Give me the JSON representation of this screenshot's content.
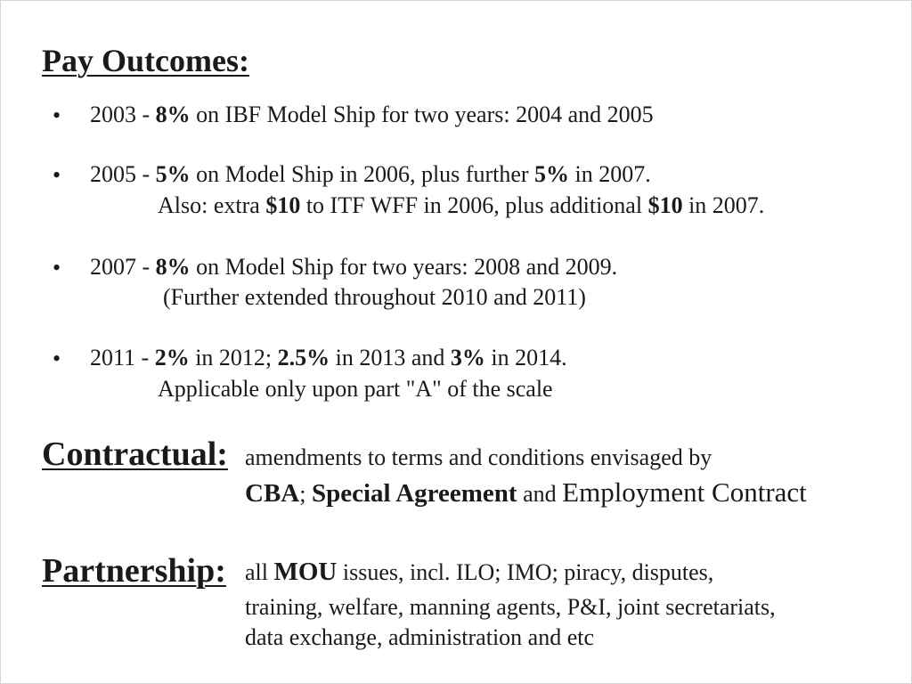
{
  "pay": {
    "title": "Pay Outcomes:",
    "items": [
      {
        "year": "2003 - ",
        "pct1": "8%",
        "rest1": " on IBF Model Ship for two years: 2004 and 2005"
      },
      {
        "year": "2005 - ",
        "pct1": "5%",
        "mid1": " on Model Ship in 2006, plus further ",
        "pct2": "5%",
        "rest1": " in 2007.",
        "sub_a": "Also: extra ",
        "amt1": "$10",
        "sub_b": " to ITF WFF in 2006, plus additional ",
        "amt2": "$10",
        "sub_c": " in 2007."
      },
      {
        "year": "2007 - ",
        "pct1": "8%",
        "rest1": " on Model Ship for two years: 2008 and 2009.",
        "sub": "(Further extended throughout 2010 and 2011)"
      },
      {
        "year": "2011 - ",
        "pct1": "2%",
        "mid1": " in 2012; ",
        "pct2": "2.5%",
        "mid2": " in 2013 and ",
        "pct3": "3%",
        "rest1": " in 2014.",
        "sub": "Applicable only upon part \"A\" of the scale"
      }
    ],
    "bullet_char": "•"
  },
  "contractual": {
    "title": "Contractual:",
    "line1": "amendments to terms and conditions envisaged by",
    "cba": "CBA",
    "sep": "; ",
    "special": "Special Agreement",
    "and": " and ",
    "employment": "Employment Contract"
  },
  "partnership": {
    "title": "Partnership:",
    "all": "all ",
    "mou": "MOU",
    "line1_rest": " issues, incl. ILO; IMO; piracy, disputes,",
    "line2": "training, welfare, manning agents, P&I, joint secretariats,",
    "line3": "data exchange, administration and etc"
  }
}
